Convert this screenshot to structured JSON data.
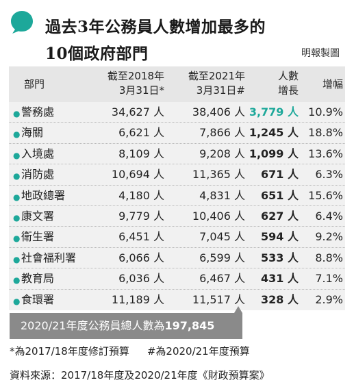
{
  "title": {
    "line1": "過去3年公務員人數增加最多的",
    "line2": "10個政府部門",
    "credit": "明報製圖"
  },
  "colors": {
    "accent": "#1da89a",
    "header_bg": "#e6e6e6",
    "table_bg": "#f1f1f1",
    "total_bg": "#8a8a8a"
  },
  "table": {
    "headers": {
      "dept": "部門",
      "y2018_l1": "截至2018年",
      "y2018_l2": "3月31日*",
      "y2021_l1": "截至2021年",
      "y2021_l2": "3月31日#",
      "growth_l1": "人數",
      "growth_l2": "增長",
      "rate": "增幅"
    },
    "rows": [
      {
        "name": "警務處",
        "v2018": "34,627 人",
        "v2021": "38,406 人",
        "growth": "3,779 人",
        "rate": "10.9%"
      },
      {
        "name": "海關",
        "v2018": "6,621 人",
        "v2021": "7,866 人",
        "growth": "1,245 人",
        "rate": "18.8%"
      },
      {
        "name": "入境處",
        "v2018": "8,109 人",
        "v2021": "9,208 人",
        "growth": "1,099 人",
        "rate": "13.6%"
      },
      {
        "name": "消防處",
        "v2018": "10,694 人",
        "v2021": "11,365 人",
        "growth": "671 人",
        "rate": "6.3%"
      },
      {
        "name": "地政總署",
        "v2018": "4,180 人",
        "v2021": "4,831 人",
        "growth": "651 人",
        "rate": "15.6%"
      },
      {
        "name": "康文署",
        "v2018": "9,779 人",
        "v2021": "10,406 人",
        "growth": "627 人",
        "rate": "6.4%"
      },
      {
        "name": "衛生署",
        "v2018": "6,451 人",
        "v2021": "7,045 人",
        "growth": "594 人",
        "rate": "9.2%"
      },
      {
        "name": "社會福利署",
        "v2018": "6,066 人",
        "v2021": "6,599 人",
        "growth": "533 人",
        "rate": "8.8%"
      },
      {
        "name": "教育局",
        "v2018": "6,036 人",
        "v2021": "6,467 人",
        "growth": "431 人",
        "rate": "7.1%"
      },
      {
        "name": "食環署",
        "v2018": "11,189 人",
        "v2021": "11,517 人",
        "growth": "328 人",
        "rate": "2.9%"
      }
    ]
  },
  "total": {
    "label": "2020/21年度公務員總人數為",
    "value": "197,845"
  },
  "notes": {
    "n1": "*為2017/18年度修訂預算",
    "n2": "#為2020/21年度預算"
  },
  "source": "資料來源：2017/18年度及2020/21年度《財政預算案》"
}
